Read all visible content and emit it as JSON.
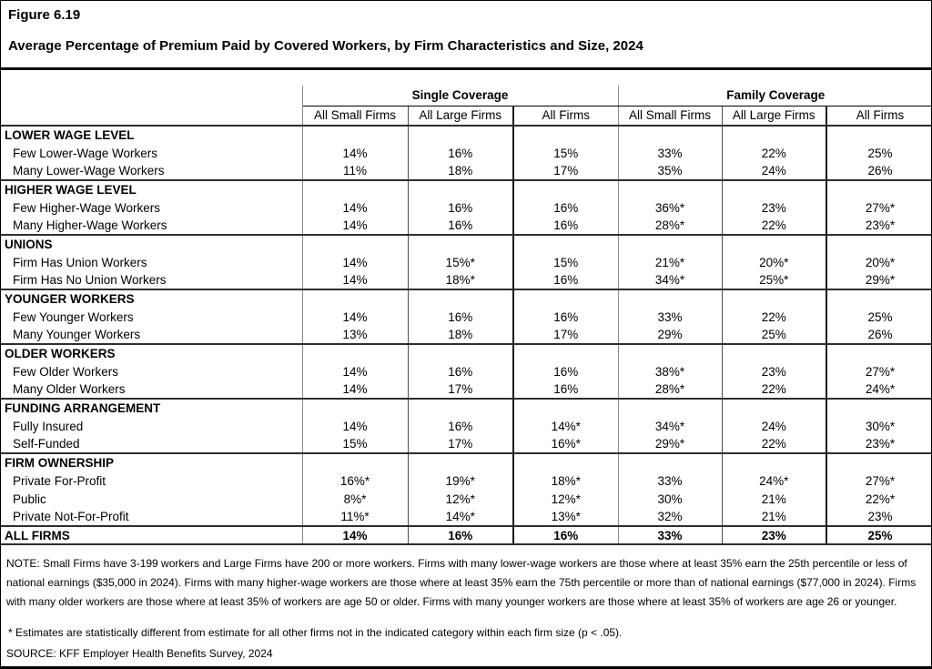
{
  "header": {
    "figure_number": "Figure 6.19",
    "figure_title": "Average Percentage of Premium Paid by Covered Workers, by Firm Characteristics and Size, 2024"
  },
  "table": {
    "group_headers": [
      "Single Coverage",
      "Family Coverage"
    ],
    "column_headers": [
      "All Small Firms",
      "All Large Firms",
      "All Firms",
      "All Small Firms",
      "All Large Firms",
      "All Firms"
    ],
    "sections": [
      {
        "header": "LOWER WAGE LEVEL",
        "rows": [
          {
            "label": "Few Lower-Wage Workers",
            "values": [
              "14%",
              "16%",
              "15%",
              "33%",
              "22%",
              "25%"
            ]
          },
          {
            "label": "Many Lower-Wage Workers",
            "values": [
              "11%",
              "18%",
              "17%",
              "35%",
              "24%",
              "26%"
            ]
          }
        ]
      },
      {
        "header": "HIGHER WAGE LEVEL",
        "rows": [
          {
            "label": "Few Higher-Wage Workers",
            "values": [
              "14%",
              "16%",
              "16%",
              "36%*",
              "23%",
              "27%*"
            ]
          },
          {
            "label": "Many Higher-Wage Workers",
            "values": [
              "14%",
              "16%",
              "16%",
              "28%*",
              "22%",
              "23%*"
            ]
          }
        ]
      },
      {
        "header": "UNIONS",
        "rows": [
          {
            "label": "Firm Has Union Workers",
            "values": [
              "14%",
              "15%*",
              "15%",
              "21%*",
              "20%*",
              "20%*"
            ]
          },
          {
            "label": "Firm Has No Union Workers",
            "values": [
              "14%",
              "18%*",
              "16%",
              "34%*",
              "25%*",
              "29%*"
            ]
          }
        ]
      },
      {
        "header": "YOUNGER WORKERS",
        "rows": [
          {
            "label": "Few Younger Workers",
            "values": [
              "14%",
              "16%",
              "16%",
              "33%",
              "22%",
              "25%"
            ]
          },
          {
            "label": "Many Younger Workers",
            "values": [
              "13%",
              "18%",
              "17%",
              "29%",
              "25%",
              "26%"
            ]
          }
        ]
      },
      {
        "header": "OLDER WORKERS",
        "rows": [
          {
            "label": "Few Older Workers",
            "values": [
              "14%",
              "16%",
              "16%",
              "38%*",
              "23%",
              "27%*"
            ]
          },
          {
            "label": "Many Older Workers",
            "values": [
              "14%",
              "17%",
              "16%",
              "28%*",
              "22%",
              "24%*"
            ]
          }
        ]
      },
      {
        "header": "FUNDING ARRANGEMENT",
        "rows": [
          {
            "label": "Fully Insured",
            "values": [
              "14%",
              "16%",
              "14%*",
              "34%*",
              "24%",
              "30%*"
            ]
          },
          {
            "label": "Self-Funded",
            "values": [
              "15%",
              "17%",
              "16%*",
              "29%*",
              "22%",
              "23%*"
            ]
          }
        ]
      },
      {
        "header": "FIRM OWNERSHIP",
        "rows": [
          {
            "label": "Private For-Profit",
            "values": [
              "16%*",
              "19%*",
              "18%*",
              "33%",
              "24%*",
              "27%*"
            ]
          },
          {
            "label": "Public",
            "values": [
              "8%*",
              "12%*",
              "12%*",
              "30%",
              "21%",
              "22%*"
            ]
          },
          {
            "label": "Private Not-For-Profit",
            "values": [
              "11%*",
              "14%*",
              "13%*",
              "32%",
              "21%",
              "23%"
            ]
          }
        ]
      }
    ],
    "total_row": {
      "label": "ALL FIRMS",
      "values": [
        "14%",
        "16%",
        "16%",
        "33%",
        "23%",
        "25%"
      ]
    }
  },
  "notes": {
    "note": "NOTE: Small Firms have 3-199 workers and Large Firms have 200 or more workers. Firms with many lower-wage workers are those where at least 35% earn the 25th percentile or less of national earnings ($35,000 in 2024). Firms with many higher-wage workers are those where at least 35% earn the 75th percentile or more than of national earnings ($77,000 in 2024). Firms with many older workers are those where at least 35% of workers are age 50 or older. Firms with many younger workers are those where at least 35% of workers are age 26 or younger.",
    "footnote": "* Estimates are statistically different from estimate for all other firms not in the indicated category within each firm size (p < .05).",
    "source": "SOURCE: KFF Employer Health Benefits Survey, 2024"
  }
}
